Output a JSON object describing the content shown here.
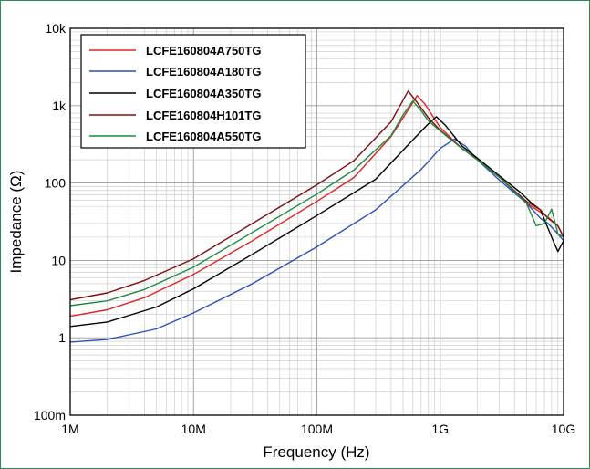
{
  "frame_color": "#2e8b57",
  "chart_data": {
    "type": "line",
    "title": "",
    "xlabel": "Frequency (Hz)",
    "ylabel": "Impedance (Ω)",
    "x_scale": "log",
    "y_scale": "log",
    "xlim": [
      1000000,
      10000000000
    ],
    "ylim": [
      0.1,
      10000
    ],
    "grid": true,
    "legend_position": "top-left",
    "x_ticks": [
      {
        "value": 1000000,
        "label": "1M"
      },
      {
        "value": 10000000,
        "label": "10M"
      },
      {
        "value": 100000000,
        "label": "100M"
      },
      {
        "value": 1000000000,
        "label": "1G"
      },
      {
        "value": 10000000000,
        "label": "10G"
      }
    ],
    "y_ticks": [
      {
        "value": 0.1,
        "label": "100m"
      },
      {
        "value": 1,
        "label": "1"
      },
      {
        "value": 10,
        "label": "10"
      },
      {
        "value": 100,
        "label": "100"
      },
      {
        "value": 1000,
        "label": "1k"
      },
      {
        "value": 10000,
        "label": "10k"
      }
    ],
    "series": [
      {
        "name": "LCFE160804A750TG",
        "color": "#e32222",
        "x": [
          1000000,
          2000000,
          4000000,
          10000000,
          30000000,
          100000000,
          200000000,
          400000000,
          550000000,
          650000000,
          750000000,
          1000000000,
          1500000000,
          2000000000,
          3000000000,
          5000000000,
          6500000000,
          7500000000,
          9000000000,
          10000000000
        ],
        "y": [
          1.9,
          2.3,
          3.3,
          6.6,
          18,
          58,
          118,
          400,
          880,
          1350,
          1050,
          520,
          280,
          200,
          120,
          55,
          42,
          36,
          28,
          20
        ]
      },
      {
        "name": "LCFE160804A180TG",
        "color": "#2e4fb5",
        "x": [
          1000000,
          2000000,
          5000000,
          10000000,
          30000000,
          100000000,
          300000000,
          700000000,
          1000000000,
          1300000000,
          1600000000,
          2000000000,
          3000000000,
          5000000000,
          6500000000,
          7500000000,
          9000000000,
          10000000000
        ],
        "y": [
          0.88,
          0.95,
          1.3,
          2.1,
          5,
          15,
          45,
          150,
          280,
          370,
          300,
          200,
          110,
          55,
          35,
          30,
          22,
          18
        ]
      },
      {
        "name": "LCFE160804A350TG",
        "color": "#000000",
        "x": [
          1000000,
          2000000,
          5000000,
          10000000,
          30000000,
          100000000,
          300000000,
          600000000,
          800000000,
          930000000,
          1100000000,
          1500000000,
          2000000000,
          3000000000,
          4500000000,
          5500000000,
          6500000000,
          8000000000,
          9000000000,
          10000000000
        ],
        "y": [
          1.4,
          1.6,
          2.5,
          4.3,
          12,
          38,
          112,
          360,
          580,
          720,
          560,
          300,
          210,
          125,
          75,
          55,
          45,
          20,
          13,
          18
        ]
      },
      {
        "name": "LCFE160804H101TG",
        "color": "#7a1010",
        "x": [
          1000000,
          2000000,
          4000000,
          10000000,
          30000000,
          100000000,
          200000000,
          400000000,
          550000000,
          650000000,
          800000000,
          1000000000,
          1500000000,
          2000000000,
          3000000000,
          5000000000,
          6500000000,
          7500000000,
          9000000000,
          10000000000
        ],
        "y": [
          3.1,
          3.8,
          5.5,
          10.5,
          30,
          95,
          195,
          620,
          1550,
          1100,
          700,
          480,
          280,
          200,
          120,
          58,
          45,
          35,
          28,
          20
        ]
      },
      {
        "name": "LCFE160804A550TG",
        "color": "#1f8a3f",
        "x": [
          1000000,
          2000000,
          4000000,
          10000000,
          30000000,
          100000000,
          200000000,
          400000000,
          500000000,
          600000000,
          700000000,
          800000000,
          1000000000,
          1500000000,
          2000000000,
          3000000000,
          5000000000,
          6000000000,
          7000000000,
          8000000000,
          9000000000,
          10000000000
        ],
        "y": [
          2.6,
          3.0,
          4.2,
          8.2,
          23,
          72,
          148,
          410,
          760,
          1150,
          860,
          640,
          470,
          280,
          200,
          120,
          55,
          28,
          30,
          46,
          22,
          20
        ]
      }
    ]
  }
}
